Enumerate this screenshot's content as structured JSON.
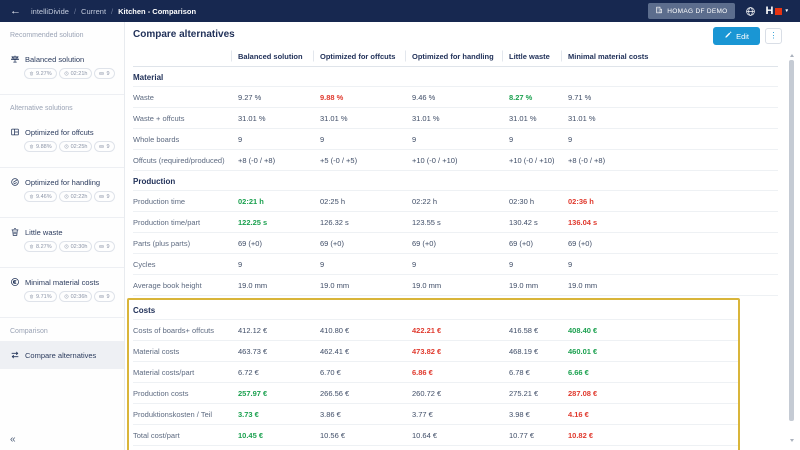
{
  "colors": {
    "topbar": "#172850",
    "accent": "#1a96d4",
    "red": "#e03a2e",
    "green": "#1ca150",
    "highlight": "#d9b53a",
    "navy": "#22325a"
  },
  "topbar": {
    "back": "←",
    "breadcrumb": [
      "intelliDivide",
      "Current",
      "Kitchen - Comparison"
    ],
    "org_badge": "HOMAG DF DEMO",
    "logo_text": "H",
    "logo_caret": "▾"
  },
  "sidebar": {
    "sections": [
      {
        "header": "Recommended solution",
        "items": [
          {
            "icon": "scales",
            "label": "Balanced solution",
            "badges": [
              {
                "icon": "trash",
                "text": "9.27%"
              },
              {
                "icon": "clock",
                "text": "02:21h"
              },
              {
                "icon": "board",
                "text": "9"
              }
            ]
          }
        ]
      },
      {
        "header": "Alternative solutions",
        "items": [
          {
            "icon": "offcuts",
            "label": "Optimized for offcuts",
            "badges": [
              {
                "icon": "trash",
                "text": "9.88%"
              },
              {
                "icon": "clock",
                "text": "02:25h"
              },
              {
                "icon": "board",
                "text": "9"
              }
            ]
          },
          {
            "icon": "handling",
            "label": "Optimized for handling",
            "badges": [
              {
                "icon": "trash",
                "text": "9.46%"
              },
              {
                "icon": "clock",
                "text": "02:22h"
              },
              {
                "icon": "board",
                "text": "9"
              }
            ]
          },
          {
            "icon": "trash",
            "label": "Little waste",
            "badges": [
              {
                "icon": "trash",
                "text": "8.27%"
              },
              {
                "icon": "clock",
                "text": "02:30h"
              },
              {
                "icon": "board",
                "text": "9"
              }
            ]
          },
          {
            "icon": "coin",
            "label": "Minimal material costs",
            "badges": [
              {
                "icon": "trash",
                "text": "9.71%"
              },
              {
                "icon": "clock",
                "text": "02:36h"
              },
              {
                "icon": "board",
                "text": "9"
              }
            ]
          }
        ]
      },
      {
        "header": "Comparison",
        "items": [
          {
            "icon": "compare",
            "label": "Compare alternatives",
            "selected": true
          }
        ]
      }
    ],
    "collapse": "«"
  },
  "main": {
    "title": "Compare alternatives",
    "edit_label": "Edit",
    "more_label": "⋮"
  },
  "table": {
    "columns": [
      "Balanced solution",
      "Optimized for offcuts",
      "Optimized for handling",
      "Little waste",
      "Minimal material costs"
    ],
    "groups": [
      {
        "name": "Material",
        "rows": [
          {
            "label": "Waste",
            "values": [
              {
                "t": "9.27 %"
              },
              {
                "t": "9.88 %",
                "s": "bad"
              },
              {
                "t": "9.46 %"
              },
              {
                "t": "8.27 %",
                "s": "good"
              },
              {
                "t": "9.71 %"
              }
            ]
          },
          {
            "label": "Waste + offcuts",
            "values": [
              {
                "t": "31.01 %"
              },
              {
                "t": "31.01 %"
              },
              {
                "t": "31.01 %"
              },
              {
                "t": "31.01 %"
              },
              {
                "t": "31.01 %"
              }
            ]
          },
          {
            "label": "Whole boards",
            "values": [
              {
                "t": "9"
              },
              {
                "t": "9"
              },
              {
                "t": "9"
              },
              {
                "t": "9"
              },
              {
                "t": "9"
              }
            ]
          },
          {
            "label": "Offcuts (required/produced)",
            "values": [
              {
                "t": "+8 (-0 / +8)"
              },
              {
                "t": "+5 (-0 / +5)"
              },
              {
                "t": "+10 (-0 / +10)"
              },
              {
                "t": "+10 (-0 / +10)"
              },
              {
                "t": "+8 (-0 / +8)"
              }
            ]
          }
        ]
      },
      {
        "name": "Production",
        "rows": [
          {
            "label": "Production time",
            "values": [
              {
                "t": "02:21 h",
                "s": "good"
              },
              {
                "t": "02:25 h"
              },
              {
                "t": "02:22 h"
              },
              {
                "t": "02:30 h"
              },
              {
                "t": "02:36 h",
                "s": "bad"
              }
            ]
          },
          {
            "label": "Production time/part",
            "values": [
              {
                "t": "122.25 s",
                "s": "good"
              },
              {
                "t": "126.32 s"
              },
              {
                "t": "123.55 s"
              },
              {
                "t": "130.42 s"
              },
              {
                "t": "136.04 s",
                "s": "bad"
              }
            ]
          },
          {
            "label": "Parts (plus parts)",
            "values": [
              {
                "t": "69 (+0)"
              },
              {
                "t": "69 (+0)"
              },
              {
                "t": "69 (+0)"
              },
              {
                "t": "69 (+0)"
              },
              {
                "t": "69 (+0)"
              }
            ]
          },
          {
            "label": "Cycles",
            "values": [
              {
                "t": "9"
              },
              {
                "t": "9"
              },
              {
                "t": "9"
              },
              {
                "t": "9"
              },
              {
                "t": "9"
              }
            ]
          },
          {
            "label": "Average book height",
            "values": [
              {
                "t": "19.0 mm"
              },
              {
                "t": "19.0 mm"
              },
              {
                "t": "19.0 mm"
              },
              {
                "t": "19.0 mm"
              },
              {
                "t": "19.0 mm"
              }
            ]
          }
        ]
      },
      {
        "name": "Costs",
        "highlight": true,
        "rows": [
          {
            "label": "Costs of boards+ offcuts",
            "values": [
              {
                "t": "412.12 €"
              },
              {
                "t": "410.80 €"
              },
              {
                "t": "422.21 €",
                "s": "bad"
              },
              {
                "t": "416.58 €"
              },
              {
                "t": "408.40 €",
                "s": "good"
              }
            ]
          },
          {
            "label": "Material costs",
            "values": [
              {
                "t": "463.73 €"
              },
              {
                "t": "462.41 €"
              },
              {
                "t": "473.82 €",
                "s": "bad"
              },
              {
                "t": "468.19 €"
              },
              {
                "t": "460.01 €",
                "s": "good"
              }
            ]
          },
          {
            "label": "Material costs/part",
            "values": [
              {
                "t": "6.72 €"
              },
              {
                "t": "6.70 €"
              },
              {
                "t": "6.86 €",
                "s": "bad"
              },
              {
                "t": "6.78 €"
              },
              {
                "t": "6.66 €",
                "s": "good"
              }
            ]
          },
          {
            "label": "Production costs",
            "values": [
              {
                "t": "257.97 €",
                "s": "good"
              },
              {
                "t": "266.56 €"
              },
              {
                "t": "260.72 €"
              },
              {
                "t": "275.21 €"
              },
              {
                "t": "287.08 €",
                "s": "bad"
              }
            ]
          },
          {
            "label": "Produktionskosten / Teil",
            "values": [
              {
                "t": "3.73 €",
                "s": "good"
              },
              {
                "t": "3.86 €"
              },
              {
                "t": "3.77 €"
              },
              {
                "t": "3.98 €"
              },
              {
                "t": "4.16 €",
                "s": "bad"
              }
            ]
          },
          {
            "label": "Total cost/part",
            "values": [
              {
                "t": "10.45 €",
                "s": "good"
              },
              {
                "t": "10.56 €"
              },
              {
                "t": "10.64 €"
              },
              {
                "t": "10.77 €"
              },
              {
                "t": "10.82 €",
                "s": "bad"
              }
            ]
          }
        ]
      }
    ]
  }
}
